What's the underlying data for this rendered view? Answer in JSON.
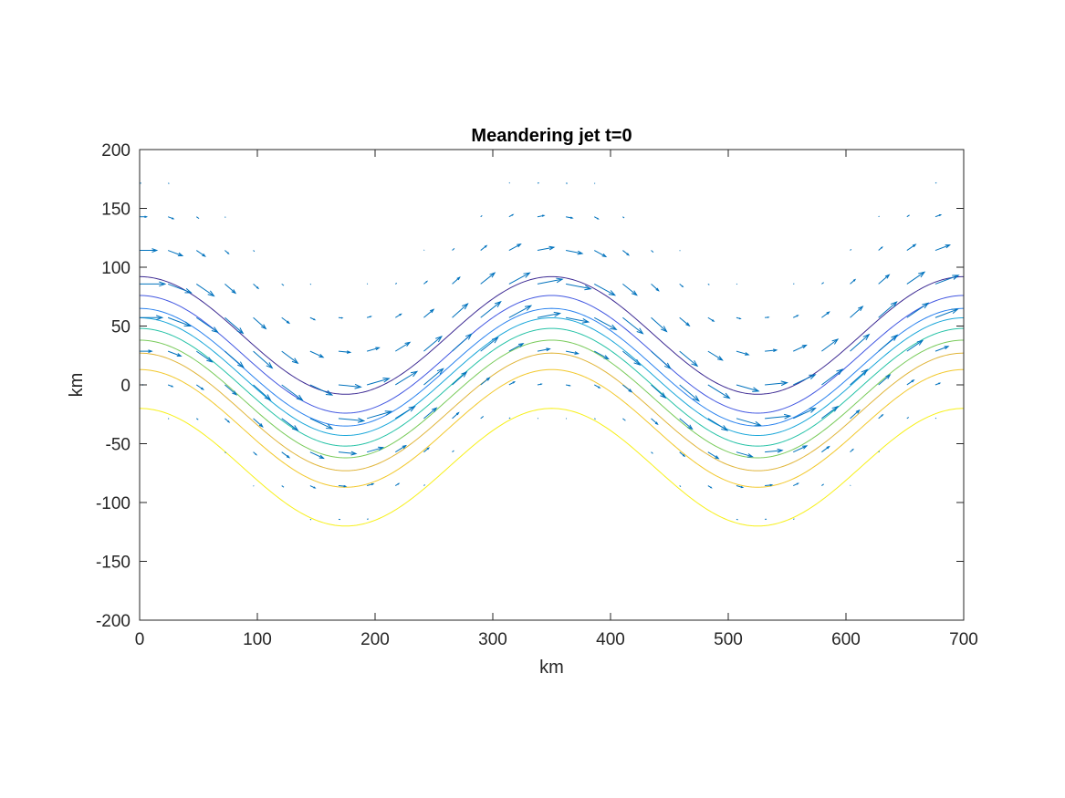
{
  "chart_data": {
    "type": "contour",
    "title": "Meandering jet t=0",
    "xlabel": "km",
    "ylabel": "km",
    "xlim": [
      0,
      700
    ],
    "ylim": [
      -200,
      200
    ],
    "xticks": [
      0,
      100,
      200,
      300,
      400,
      500,
      600,
      700
    ],
    "yticks": [
      200,
      150,
      100,
      50,
      0,
      -50,
      -100,
      -150,
      -200
    ],
    "xtick_labels": [
      "0",
      "100",
      "200",
      "300",
      "400",
      "500",
      "600",
      "700"
    ],
    "ytick_labels": [
      "200",
      "150",
      "100",
      "50",
      "0",
      "-50",
      "-100",
      "-150",
      "-200"
    ],
    "grid": false,
    "meander": {
      "wavelength_km": 350,
      "crest_x_km": 0,
      "amplitude_km": 50
    },
    "contour_levels": [
      {
        "offset_km": 42,
        "color": "#3d2a93"
      },
      {
        "offset_km": 26,
        "color": "#4257e1"
      },
      {
        "offset_km": 15,
        "color": "#2a82ee"
      },
      {
        "offset_km": 7,
        "color": "#1aa7d9"
      },
      {
        "offset_km": -2,
        "color": "#25c2a6"
      },
      {
        "offset_km": -12,
        "color": "#79cb5b"
      },
      {
        "offset_km": -23,
        "color": "#e0b53a"
      },
      {
        "offset_km": -37,
        "color": "#f2c82c"
      },
      {
        "offset_km": -70,
        "color": "#f7f018"
      }
    ],
    "quiver": {
      "color": "#0072bd",
      "x_spacing_km": 24.14,
      "y_spacing_km": 28.57,
      "core_speed_km_per_arrow": 40,
      "jet_halfwidth_km": 40
    }
  }
}
